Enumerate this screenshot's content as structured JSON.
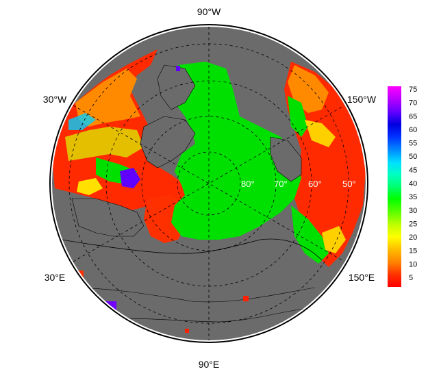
{
  "map": {
    "projection": "north-polar-stereographic",
    "background_color": "#6b6b6b",
    "ocean_ice_color": "#00e000",
    "longitude_labels": {
      "top": "90°W",
      "upper_left": "30°W",
      "upper_right": "150°W",
      "lower_left": "30°E",
      "lower_right": "150°E",
      "bottom": "90°E"
    },
    "latitude_labels": [
      "80°",
      "70°",
      "60°",
      "50°"
    ],
    "grid": "dashed"
  },
  "colorbar": {
    "ticks": [
      "75",
      "70",
      "65",
      "60",
      "55",
      "50",
      "45",
      "40",
      "35",
      "30",
      "25",
      "20",
      "15",
      "10",
      "5"
    ],
    "range": [
      0,
      78
    ],
    "colors": [
      "#ff0000",
      "#ff4000",
      "#ff8000",
      "#ffc000",
      "#ffff00",
      "#c0ff00",
      "#80ff00",
      "#00ff00",
      "#00ff80",
      "#00ffd0",
      "#00c0ff",
      "#0060ff",
      "#0000ff",
      "#6000ff",
      "#b000ff",
      "#ff00ff"
    ]
  }
}
